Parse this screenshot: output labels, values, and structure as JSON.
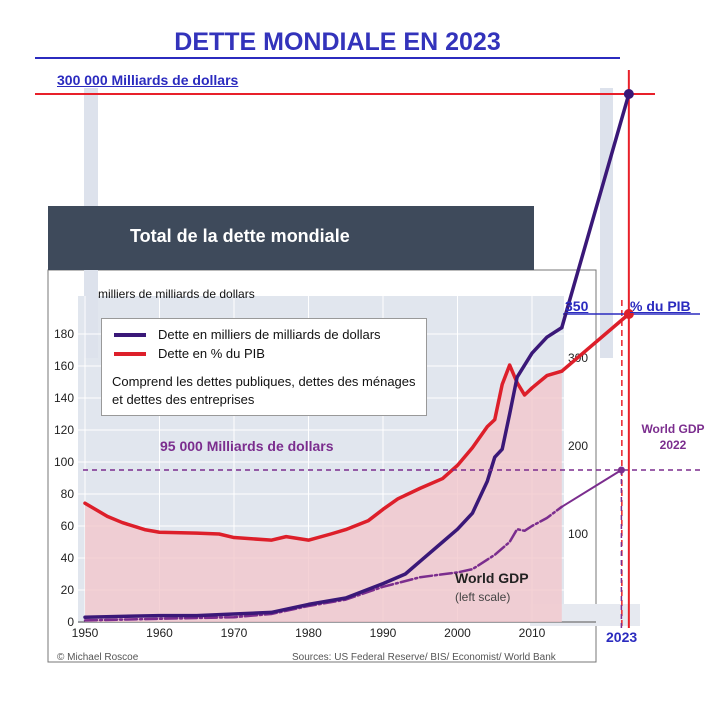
{
  "title": "DETTE MONDIALE EN 2023",
  "chart_title": "Total de la dette mondiale",
  "annotations": {
    "top_value": "300 000 Milliards de dollars",
    "gdp_level": "95 000 Milliards de dollars",
    "pct_value": "350",
    "pct_label": "% du PIB",
    "world_gdp_line1": "World GDP",
    "world_gdp_line2": "2022",
    "year_2023": "2023",
    "world_gdp_curve_label": "World GDP",
    "world_gdp_curve_sub": "(left scale)"
  },
  "credit": "© Michael Roscoe",
  "sources": "Sources: US Federal Reserve/ BIS/ Economist/ World Bank",
  "colors": {
    "debt": "#3a1878",
    "pct": "#dd1f2a",
    "gdp": "#7b2d8e",
    "annotation": "#2b2bbf",
    "red_guide": "#e8202a",
    "header_bg": "#3e4a5b"
  },
  "chart_data": {
    "type": "line",
    "title": "Total de la dette mondiale",
    "ylabel": "milliers de milliards de dollars",
    "xlabel": "",
    "legend": {
      "entries": [
        "Dette en milliers de milliards de dollars",
        "Dette en % du PIB"
      ],
      "note": "Comprend les dettes publiques, dettes des ménages et dettes des entreprises",
      "placement": "top-left"
    },
    "xlim": [
      1950,
      2023
    ],
    "ylim": [
      0,
      180
    ],
    "y2lim": [
      0,
      350
    ],
    "x_ticks": [
      1950,
      1960,
      1970,
      1980,
      1990,
      2000,
      2010
    ],
    "y_ticks": [
      0,
      20,
      40,
      60,
      80,
      100,
      120,
      140,
      160,
      180
    ],
    "y2_ticks": [
      100,
      200,
      300
    ],
    "series": [
      {
        "name": "Dette en milliers de milliards de dollars",
        "axis": "left",
        "points": [
          [
            1950,
            3
          ],
          [
            1955,
            3.5
          ],
          [
            1960,
            4
          ],
          [
            1965,
            4
          ],
          [
            1970,
            5
          ],
          [
            1975,
            6
          ],
          [
            1980,
            11
          ],
          [
            1985,
            15
          ],
          [
            1990,
            24
          ],
          [
            1993,
            30
          ],
          [
            1995,
            38
          ],
          [
            1998,
            50
          ],
          [
            2000,
            58
          ],
          [
            2002,
            68
          ],
          [
            2004,
            88
          ],
          [
            2005,
            103
          ],
          [
            2006,
            108
          ],
          [
            2007,
            130
          ],
          [
            2008,
            153
          ],
          [
            2010,
            168
          ],
          [
            2012,
            178
          ],
          [
            2014,
            184
          ]
        ]
      },
      {
        "name": "Dette en % du PIB",
        "axis": "right",
        "points": [
          [
            1950,
            135
          ],
          [
            1953,
            120
          ],
          [
            1955,
            113
          ],
          [
            1958,
            105
          ],
          [
            1960,
            102
          ],
          [
            1965,
            101
          ],
          [
            1968,
            100
          ],
          [
            1970,
            96
          ],
          [
            1975,
            93
          ],
          [
            1977,
            97
          ],
          [
            1980,
            93
          ],
          [
            1983,
            100
          ],
          [
            1985,
            105
          ],
          [
            1988,
            115
          ],
          [
            1990,
            128
          ],
          [
            1992,
            140
          ],
          [
            1995,
            152
          ],
          [
            1998,
            163
          ],
          [
            2000,
            178
          ],
          [
            2002,
            198
          ],
          [
            2004,
            222
          ],
          [
            2005,
            230
          ],
          [
            2006,
            270
          ],
          [
            2007,
            292
          ],
          [
            2008,
            272
          ],
          [
            2009,
            258
          ],
          [
            2010,
            266
          ],
          [
            2012,
            280
          ],
          [
            2014,
            285
          ]
        ]
      },
      {
        "name": "World GDP",
        "axis": "left",
        "points": [
          [
            1950,
            1
          ],
          [
            1955,
            1.5
          ],
          [
            1960,
            2
          ],
          [
            1965,
            2.5
          ],
          [
            1970,
            3
          ],
          [
            1975,
            5
          ],
          [
            1980,
            10
          ],
          [
            1985,
            14
          ],
          [
            1990,
            22
          ],
          [
            1995,
            28
          ],
          [
            2000,
            31
          ],
          [
            2002,
            33
          ],
          [
            2005,
            42
          ],
          [
            2007,
            50
          ],
          [
            2008,
            58
          ],
          [
            2009,
            57
          ],
          [
            2010,
            60
          ],
          [
            2012,
            65
          ],
          [
            2014,
            72
          ]
        ]
      }
    ],
    "extrapolations": [
      {
        "series": "Dette en milliers de milliards de dollars",
        "x": [
          2014,
          2023
        ],
        "value_end": "300 000 Milliards de dollars"
      },
      {
        "series": "Dette en % du PIB",
        "x": [
          2014,
          2023
        ],
        "y_end": 350
      },
      {
        "series": "World GDP",
        "x": [
          2014,
          2022
        ],
        "y_end": 95
      }
    ]
  }
}
